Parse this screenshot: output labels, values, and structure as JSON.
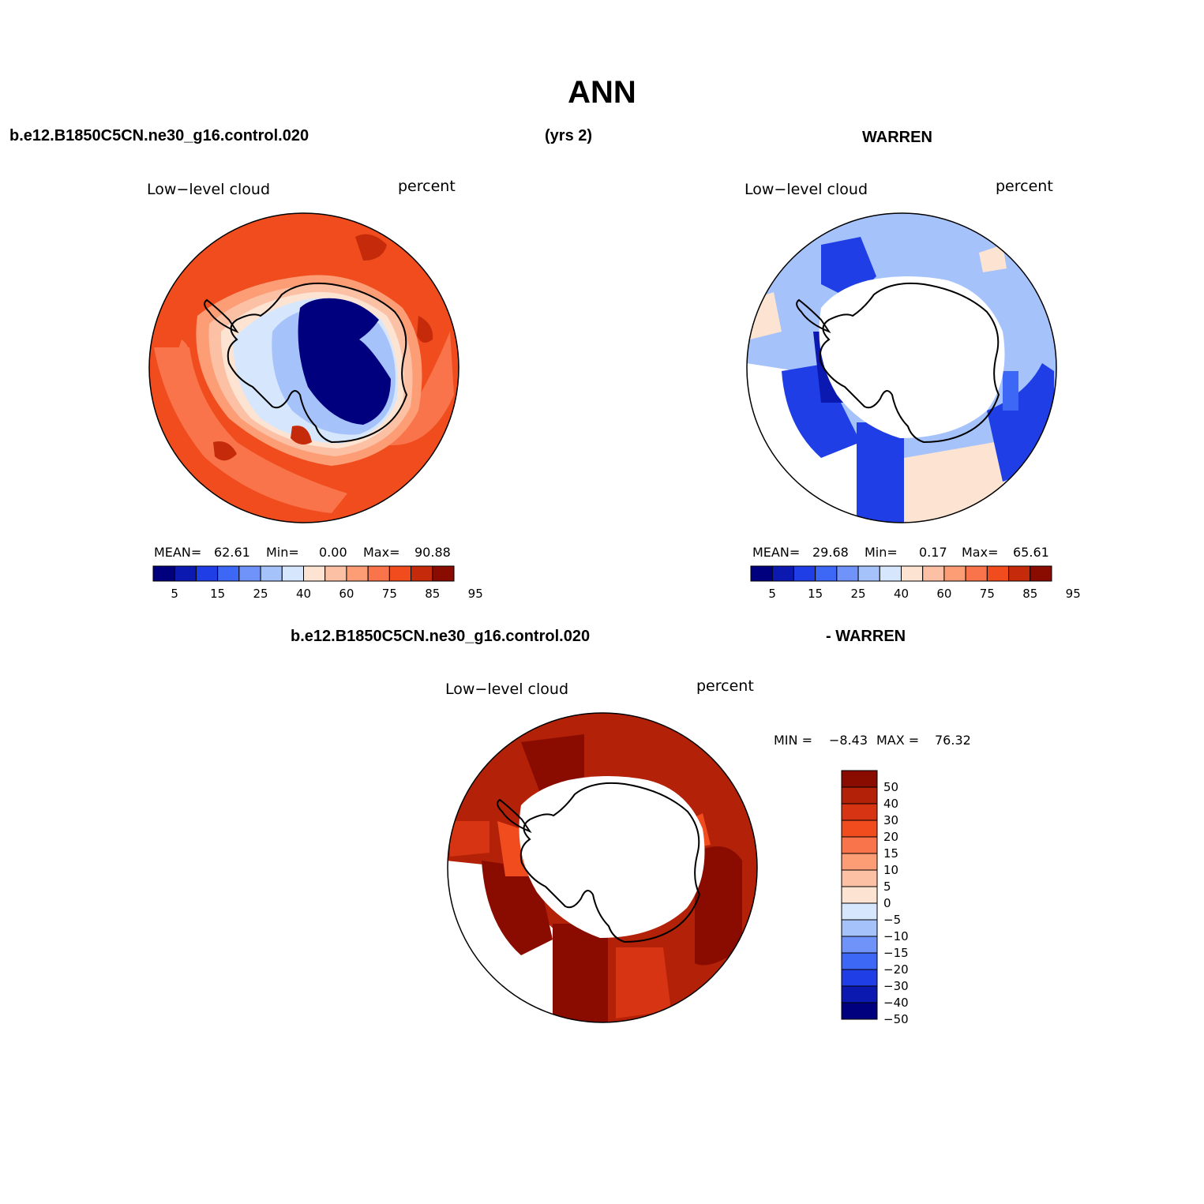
{
  "figure": {
    "title": "ANN",
    "case_name": "b.e12.B1850C5CN.ne30_g16.control.020",
    "years": "(yrs 2)",
    "obs_name": "WARREN",
    "diff_case_name": "b.e12.B1850C5CN.ne30_g16.control.020",
    "diff_obs_name": "- WARREN"
  },
  "panels": [
    {
      "variable": "Low−level cloud",
      "units": "percent",
      "stats": {
        "mean_label": "MEAN=",
        "mean": "62.61",
        "min_label": "Min=",
        "min": "0.00",
        "max_label": "Max=",
        "max": "90.88"
      },
      "colorbar_labels": [
        "5",
        "15",
        "25",
        "40",
        "60",
        "75",
        "85",
        "95"
      ]
    },
    {
      "variable": "Low−level cloud",
      "units": "percent",
      "stats": {
        "mean_label": "MEAN=",
        "mean": "29.68",
        "min_label": "Min=",
        "min": "0.17",
        "max_label": "Max=",
        "max": "65.61"
      },
      "colorbar_labels": [
        "5",
        "15",
        "25",
        "40",
        "60",
        "75",
        "85",
        "95"
      ]
    },
    {
      "variable": "Low−level cloud",
      "units": "percent",
      "minmax": {
        "min_label": "MIN =",
        "min": "−8.43",
        "max_label": "MAX =",
        "max": "76.32"
      },
      "colorbar_labels": [
        "50",
        "40",
        "30",
        "20",
        "15",
        "10",
        "5",
        "0",
        "−5",
        "−10",
        "−15",
        "−20",
        "−30",
        "−40",
        "−50"
      ]
    }
  ],
  "colors": {
    "abs_scale": [
      "#00007f",
      "#0b19b0",
      "#1f3ee5",
      "#3d68f5",
      "#6f93f9",
      "#a5c2fb",
      "#d6e7fd",
      "#fde3d2",
      "#fcc0a4",
      "#fc9d76",
      "#f9744a",
      "#f04c1e",
      "#c52b0a",
      "#8a0c00"
    ],
    "diff_scale": [
      "#8a0c00",
      "#b22108",
      "#d63412",
      "#f04c1e",
      "#f9744a",
      "#fc9d76",
      "#fcc0a4",
      "#fde3d2",
      "#d6e7fd",
      "#a5c2fb",
      "#6f93f9",
      "#3d68f5",
      "#1f3ee5",
      "#0b19b0",
      "#00007f"
    ]
  }
}
